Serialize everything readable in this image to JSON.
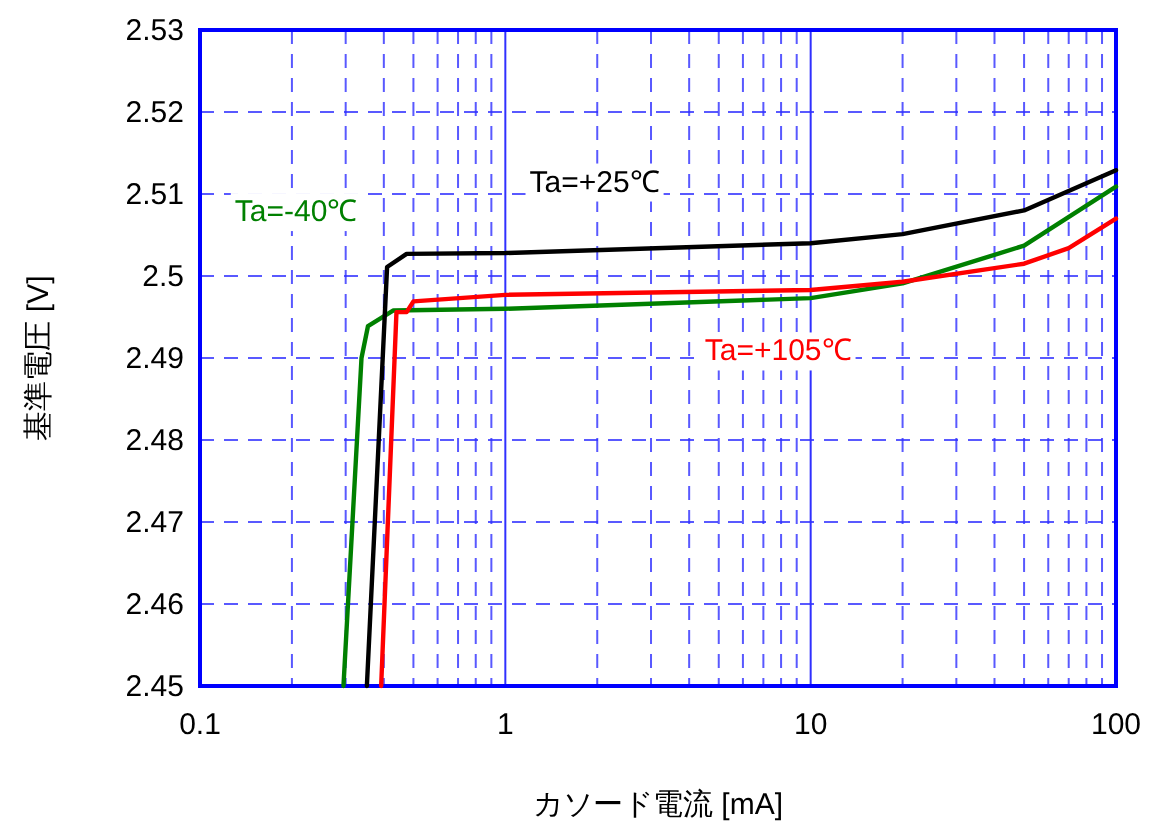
{
  "chart_data": {
    "type": "line",
    "xlabel": "カソード電流 [mA]",
    "ylabel": "基準電圧 [V]",
    "log": "x",
    "grid": true,
    "legend": false,
    "marker": "none",
    "line_style": "solid",
    "xlim": [
      0.1,
      100
    ],
    "xticks": [
      {
        "value": 0.1,
        "label": "0.1"
      },
      1,
      10,
      100
    ],
    "ylim": [
      2.45,
      2.53
    ],
    "yticks": [
      {
        "value": 2.45,
        "label": "2.45"
      },
      {
        "value": 2.46,
        "label": "2.46"
      },
      {
        "value": 2.47,
        "label": "2.47"
      },
      {
        "value": 2.48,
        "label": "2.48"
      },
      {
        "value": 2.49,
        "label": "2.49"
      },
      {
        "value": 2.5,
        "label": "2.5"
      },
      {
        "value": 2.51,
        "label": "2.51"
      },
      {
        "value": 2.52,
        "label": "2.52"
      },
      {
        "value": 2.53,
        "label": "2.53"
      }
    ],
    "series": [
      {
        "name": "Ta=-40℃",
        "color": "#008000",
        "x": [
          0.295,
          0.338,
          0.355,
          0.43,
          1,
          10,
          20,
          50,
          100
        ],
        "values": [
          2.45,
          2.49,
          2.4939,
          2.4958,
          2.496,
          2.4973,
          2.4991,
          2.5037,
          2.5109
        ]
      },
      {
        "name": "Ta=+25℃",
        "color": "#000000",
        "x": [
          0.352,
          0.41,
          0.475,
          1,
          10,
          20,
          50,
          100
        ],
        "values": [
          2.45,
          2.5011,
          2.5027,
          2.5028,
          2.504,
          2.5051,
          2.508,
          2.5129
        ]
      },
      {
        "name": "Ta=+105℃",
        "color": "#ff0000",
        "x": [
          0.392,
          0.44,
          0.475,
          0.5,
          1,
          10,
          20,
          50,
          70,
          100
        ],
        "values": [
          2.45,
          2.4956,
          2.4956,
          2.4969,
          2.4977,
          2.4983,
          2.4993,
          2.5015,
          2.5034,
          2.507
        ]
      }
    ]
  }
}
